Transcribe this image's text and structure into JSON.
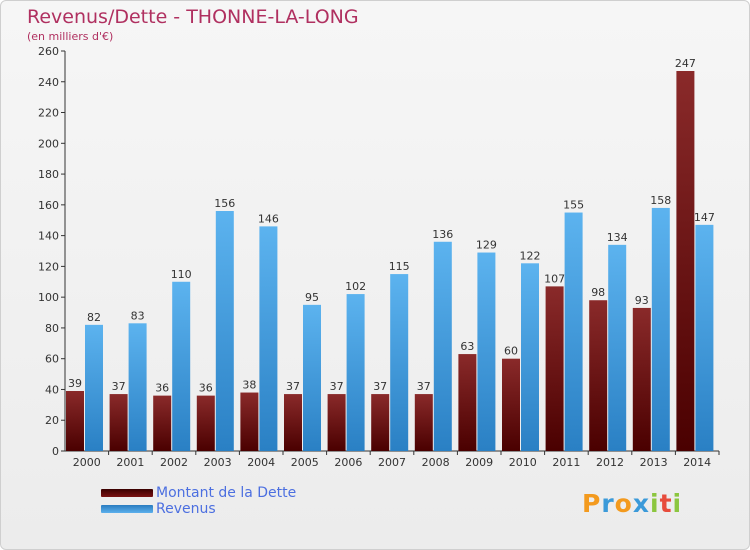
{
  "header": {
    "title": "Revenus/Dette - THONNE-LA-LONG",
    "subtitle": "(en milliers d'€)"
  },
  "chart_data": {
    "type": "bar",
    "title": "Revenus/Dette - THONNE-LA-LONG",
    "ylabel": "(en milliers d'€)",
    "xlabel": "",
    "ylim": [
      0,
      260
    ],
    "yticks": [
      0,
      20,
      40,
      60,
      80,
      100,
      120,
      140,
      160,
      180,
      200,
      220,
      240,
      260
    ],
    "grid": false,
    "categories": [
      "2000",
      "2001",
      "2002",
      "2003",
      "2004",
      "2005",
      "2006",
      "2007",
      "2008",
      "2009",
      "2010",
      "2011",
      "2012",
      "2013",
      "2014"
    ],
    "series": [
      {
        "name": "Montant de la Dette",
        "color": "#6e1414",
        "values": [
          39,
          37,
          36,
          36,
          38,
          37,
          37,
          37,
          37,
          63,
          60,
          107,
          98,
          93,
          247
        ]
      },
      {
        "name": "Revenus",
        "color": "#4da6e8",
        "values": [
          82,
          83,
          110,
          156,
          146,
          95,
          102,
          115,
          136,
          129,
          122,
          155,
          134,
          158,
          147
        ]
      }
    ],
    "legend_position": "bottom-left"
  },
  "legend": {
    "items": [
      {
        "label": "Montant de la Dette"
      },
      {
        "label": "Revenus"
      }
    ]
  },
  "logo": {
    "text": "Proxiti",
    "letters": [
      "P",
      "r",
      "o",
      "x",
      "i",
      "t",
      "i"
    ],
    "colors": [
      "#f39a1e",
      "#3b9ad9",
      "#f39a1e",
      "#3b9ad9",
      "#8cc63f",
      "#e74c3c",
      "#8cc63f"
    ]
  }
}
